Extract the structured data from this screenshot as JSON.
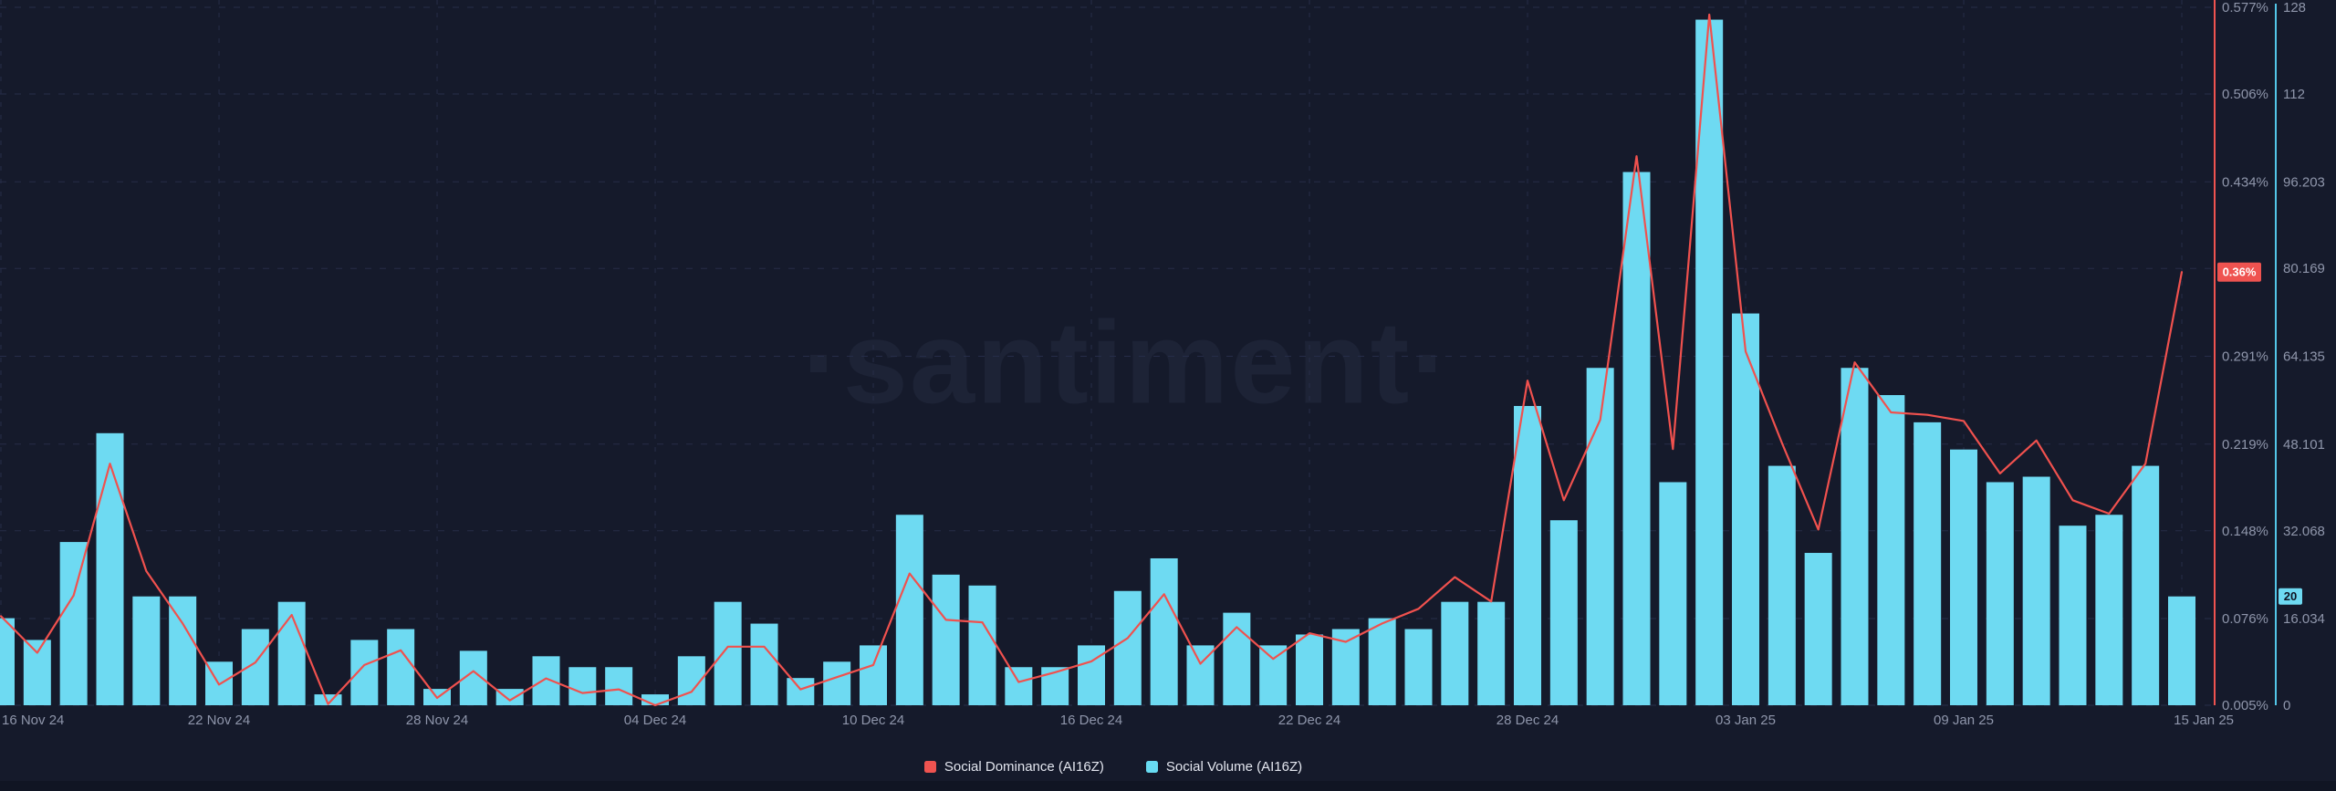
{
  "watermark": "·santiment·",
  "legend": {
    "items": [
      {
        "label": "Social Dominance (AI16Z)",
        "color": "#ef5350"
      },
      {
        "label": "Social Volume (AI16Z)",
        "color": "#68dbf2"
      }
    ]
  },
  "colors": {
    "background": "#151a2b",
    "bar": "#6edaf2",
    "line": "#f0514e",
    "grid": "#262d48",
    "axis_label": "#8f96ab",
    "dominance_axis_line": "#ef5350",
    "volume_axis_line": "#53c6e8",
    "badge_red_bg": "#ef5350",
    "badge_red_text": "#ffffff",
    "badge_blue_bg": "#6edaf2",
    "badge_blue_text": "#0e1322",
    "legend_text": "#e4e7f0",
    "watermark": "#1d2336"
  },
  "chart_data": {
    "type": "bar+line",
    "title": "",
    "grid": true,
    "legend_position": "bottom",
    "x": [
      "2024-11-16",
      "2024-11-17",
      "2024-11-18",
      "2024-11-19",
      "2024-11-20",
      "2024-11-21",
      "2024-11-22",
      "2024-11-23",
      "2024-11-24",
      "2024-11-25",
      "2024-11-26",
      "2024-11-27",
      "2024-11-28",
      "2024-11-29",
      "2024-11-30",
      "2024-12-01",
      "2024-12-02",
      "2024-12-03",
      "2024-12-04",
      "2024-12-05",
      "2024-12-06",
      "2024-12-07",
      "2024-12-08",
      "2024-12-09",
      "2024-12-10",
      "2024-12-11",
      "2024-12-12",
      "2024-12-13",
      "2024-12-14",
      "2024-12-15",
      "2024-12-16",
      "2024-12-17",
      "2024-12-18",
      "2024-12-19",
      "2024-12-20",
      "2024-12-21",
      "2024-12-22",
      "2024-12-23",
      "2024-12-24",
      "2024-12-25",
      "2024-12-26",
      "2024-12-27",
      "2024-12-28",
      "2024-12-29",
      "2024-12-30",
      "2024-12-31",
      "2025-01-01",
      "2025-01-02",
      "2025-01-03",
      "2025-01-04",
      "2025-01-05",
      "2025-01-06",
      "2025-01-07",
      "2025-01-08",
      "2025-01-09",
      "2025-01-10",
      "2025-01-11",
      "2025-01-12",
      "2025-01-13",
      "2025-01-14",
      "2025-01-15"
    ],
    "series": [
      {
        "name": "Social Dominance (AI16Z)",
        "type": "line",
        "unit": "%",
        "color": "#f0514e",
        "values": [
          0.078,
          0.048,
          0.095,
          0.203,
          0.115,
          0.072,
          0.022,
          0.04,
          0.079,
          0.006,
          0.038,
          0.05,
          0.011,
          0.033,
          0.009,
          0.027,
          0.015,
          0.018,
          0.005,
          0.016,
          0.053,
          0.053,
          0.018,
          0.028,
          0.038,
          0.113,
          0.075,
          0.073,
          0.024,
          0.032,
          0.041,
          0.06,
          0.096,
          0.039,
          0.069,
          0.043,
          0.064,
          0.057,
          0.072,
          0.084,
          0.11,
          0.09,
          0.271,
          0.173,
          0.239,
          0.455,
          0.215,
          0.571,
          0.295,
          0.22,
          0.149,
          0.286,
          0.245,
          0.243,
          0.238,
          0.195,
          0.222,
          0.173,
          0.162,
          0.203,
          0.36
        ]
      },
      {
        "name": "Social Volume (AI16Z)",
        "type": "bar",
        "unit": "mentions",
        "color": "#6edaf2",
        "values": [
          16,
          12,
          30,
          50,
          20,
          20,
          8,
          14,
          19,
          2,
          12,
          14,
          3,
          10,
          3,
          9,
          7,
          7,
          2,
          9,
          19,
          15,
          5,
          8,
          11,
          35,
          24,
          22,
          7,
          7,
          11,
          21,
          27,
          11,
          17,
          11,
          13,
          14,
          16,
          14,
          19,
          19,
          55,
          34,
          62,
          98,
          41,
          126,
          72,
          44,
          28,
          62,
          57,
          52,
          47,
          41,
          42,
          33,
          35,
          44,
          20
        ]
      }
    ],
    "dominance_ylim": [
      0.005,
      0.577
    ],
    "volume_ylim": [
      0,
      128.271
    ],
    "right_axis_rows": [
      {
        "pct_value": 0.577,
        "pct_label": "0.577%",
        "vol_label": "128"
      },
      {
        "pct_value": 0.506,
        "pct_label": "0.506%",
        "vol_label": "112"
      },
      {
        "pct_value": 0.434,
        "pct_label": "0.434%",
        "vol_label": "96.203"
      },
      {
        "pct_value": 0.363,
        "pct_label": "",
        "vol_label": "80.169"
      },
      {
        "pct_value": 0.291,
        "pct_label": "0.291%",
        "vol_label": "64.135"
      },
      {
        "pct_value": 0.219,
        "pct_label": "0.219%",
        "vol_label": "48.101"
      },
      {
        "pct_value": 0.148,
        "pct_label": "0.148%",
        "vol_label": "32.068"
      },
      {
        "pct_value": 0.076,
        "pct_label": "0.076%",
        "vol_label": "16.034"
      },
      {
        "pct_value": 0.005,
        "pct_label": "0.005%",
        "vol_label": "0"
      }
    ],
    "x_axis_ticks": [
      {
        "day": 0,
        "label": "16 Nov 24",
        "anchor": "start"
      },
      {
        "day": 6,
        "label": "22 Nov 24",
        "anchor": "middle"
      },
      {
        "day": 12,
        "label": "28 Nov 24",
        "anchor": "middle"
      },
      {
        "day": 18,
        "label": "04 Dec 24",
        "anchor": "middle"
      },
      {
        "day": 24,
        "label": "10 Dec 24",
        "anchor": "middle"
      },
      {
        "day": 30,
        "label": "16 Dec 24",
        "anchor": "middle"
      },
      {
        "day": 36,
        "label": "22 Dec 24",
        "anchor": "middle"
      },
      {
        "day": 42,
        "label": "28 Dec 24",
        "anchor": "middle"
      },
      {
        "day": 48,
        "label": "03 Jan 25",
        "anchor": "middle"
      },
      {
        "day": 54,
        "label": "09 Jan 25",
        "anchor": "middle"
      },
      {
        "day": 60,
        "label": "15 Jan 25",
        "anchor": "end"
      }
    ],
    "badges": {
      "dominance": {
        "text": "0.36%",
        "value": 0.36
      },
      "volume": {
        "text": "20",
        "value": 20
      }
    }
  }
}
